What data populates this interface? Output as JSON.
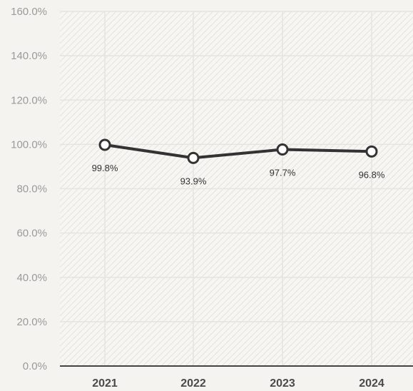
{
  "chart_data": {
    "type": "line",
    "categories": [
      "2021",
      "2022",
      "2023",
      "2024"
    ],
    "values": [
      99.8,
      93.9,
      97.7,
      96.8
    ],
    "data_labels": [
      "99.8%",
      "93.9%",
      "97.7%",
      "96.8%"
    ],
    "y_ticks": [
      0,
      20,
      40,
      60,
      80,
      100,
      120,
      140,
      160
    ],
    "y_tick_labels": [
      "0.0%",
      "20.0%",
      "40.0%",
      "60.0%",
      "80.0%",
      "100.0%",
      "120.0%",
      "140.0%",
      "160.0%"
    ],
    "ylim": [
      0,
      160
    ],
    "grid": true,
    "legend": "none",
    "title": "",
    "xlabel": "",
    "ylabel": "",
    "colors": {
      "line": "#333333",
      "marker_fill": "#ffffff",
      "grid": "#e6e4e0",
      "axis": "#444444",
      "background": "#f5f3ef"
    }
  }
}
